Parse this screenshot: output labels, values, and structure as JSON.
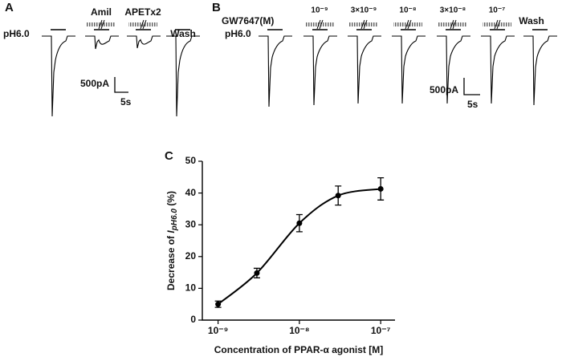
{
  "figure": {
    "panel_a": {
      "label": "A",
      "stimulus": "pH6.0",
      "drugs": [
        "Amil",
        "APETx2"
      ],
      "wash": "Wash",
      "scale_current": "500pA",
      "scale_time": "5s"
    },
    "panel_b": {
      "label": "B",
      "agonist": "GW7647(M)",
      "stimulus": "pH6.0",
      "concentrations": [
        "10⁻⁹",
        "3×10⁻⁹",
        "10⁻⁸",
        "3×10⁻⁸",
        "10⁻⁷"
      ],
      "wash": "Wash",
      "scale_current": "500pA",
      "scale_time": "5s"
    }
  },
  "chart_data": {
    "type": "errorbar",
    "panel_label": "C",
    "x_label": "Concentration of PPAR-α agonist [M]",
    "y_label": {
      "prefix": "Decrease of",
      "symbol": "I",
      "subscript": "pH6.0",
      "suffix": "(%)"
    },
    "x": [
      1e-09,
      3e-09,
      1e-08,
      3e-08,
      1e-07
    ],
    "values": [
      5,
      14.8,
      30.5,
      39.2,
      41.3
    ],
    "errors": [
      1,
      1.5,
      2.7,
      3,
      3.5
    ],
    "log_x": true,
    "color": "#000000",
    "xlim": [
      6.4e-10,
      1.5e-07
    ],
    "xticks": [
      {
        "value": 1e-09,
        "label": "10⁻⁹"
      },
      {
        "value": 1e-08,
        "label": "10⁻⁸"
      },
      {
        "value": 1e-07,
        "label": "10⁻⁷"
      }
    ],
    "ylim": [
      0,
      50
    ],
    "yticks": [
      0,
      10,
      20,
      30,
      40,
      50
    ]
  }
}
